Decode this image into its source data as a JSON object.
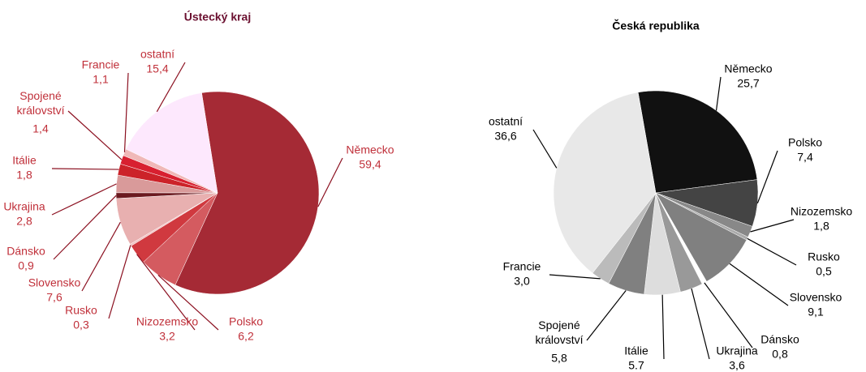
{
  "chart_data": [
    {
      "type": "pie",
      "title": "Ústecký kraj",
      "categories": [
        "Německo",
        "Polsko",
        "Nizozemsko",
        "Rusko",
        "Slovensko",
        "Dánsko",
        "Ukrajina",
        "Itálie",
        "Spojené království",
        "Francie",
        "ostatní"
      ],
      "values": [
        59.4,
        6.2,
        3.2,
        0.3,
        7.6,
        0.9,
        2.8,
        1.8,
        1.4,
        1.1,
        15.4
      ],
      "value_labels": [
        "59,4",
        "6,2",
        "3,2",
        "0,3",
        "7,6",
        "0,9",
        "2,8",
        "1,8",
        "1,4",
        "1,1",
        "15,4"
      ],
      "colors": [
        "#a52a35",
        "#d45b60",
        "#d0393f",
        "#f0c0c0",
        "#e8b0b0",
        "#6b1a20",
        "#d99a9a",
        "#cc2229",
        "#d82030",
        "#f0b8b8",
        "#fde8fd"
      ]
    },
    {
      "type": "pie",
      "title": "Česká republika",
      "categories": [
        "Německo",
        "Polsko",
        "Nizozemsko",
        "Rusko",
        "Slovensko",
        "Dánsko",
        "Ukrajina",
        "Itálie",
        "Spojené království",
        "Francie",
        "ostatní"
      ],
      "values": [
        25.7,
        7.4,
        1.8,
        0.5,
        9.1,
        0.8,
        3.6,
        5.7,
        5.8,
        3.0,
        36.6
      ],
      "value_labels": [
        "25,7",
        "7,4",
        "1,8",
        "0,5",
        "9,1",
        "0,8",
        "3,6",
        "5.7",
        "5,8",
        "3,0",
        "36,6"
      ],
      "colors": [
        "#111111",
        "#444444",
        "#888888",
        "#aaaaaa",
        "#808080",
        "#ffffff",
        "#999999",
        "#dddddd",
        "#808080",
        "#bbbbbb",
        "#e8e8e8"
      ]
    }
  ]
}
